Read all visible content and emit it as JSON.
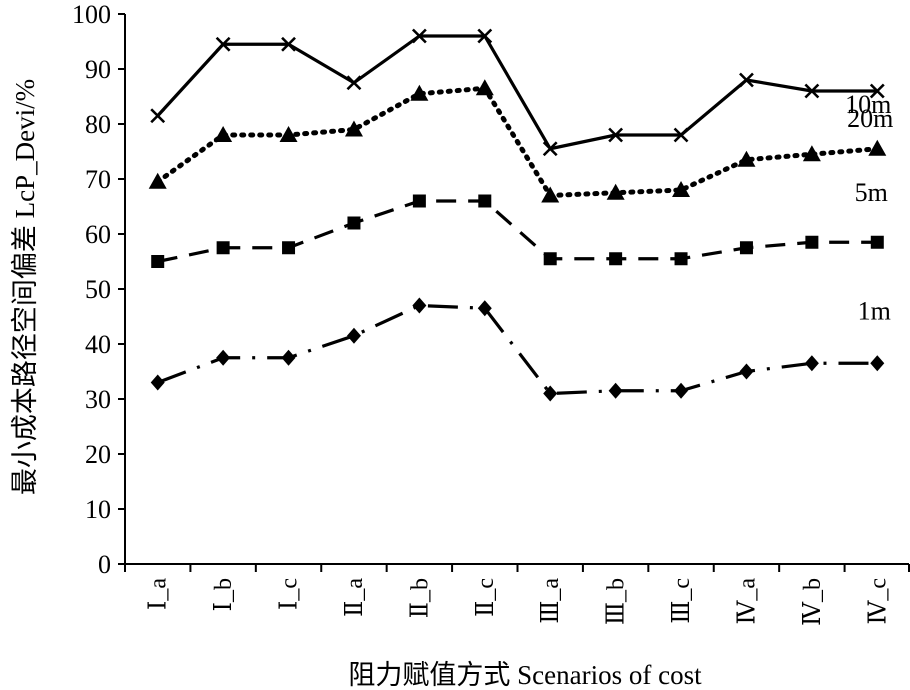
{
  "chart_data": {
    "type": "line",
    "xlabel": "阻力赋值方式 Scenarios of cost",
    "ylabel": "最小成本路径空间偏差 LcP_Devi/%",
    "ylim": [
      0,
      100
    ],
    "yticks": [
      0,
      10,
      20,
      30,
      40,
      50,
      60,
      70,
      80,
      90,
      100
    ],
    "grid": false,
    "legend": "none",
    "categories": [
      "Ⅰ_a",
      "Ⅰ_b",
      "Ⅰ_c",
      "Ⅱ_a",
      "Ⅱ_b",
      "Ⅱ_c",
      "Ⅲ_a",
      "Ⅲ_b",
      "Ⅲ_c",
      "Ⅳ_a",
      "Ⅳ_b",
      "Ⅳ_c"
    ],
    "series": [
      {
        "name": "20m",
        "marker": "x",
        "line": "solid",
        "color": "#000000",
        "values": [
          81.5,
          94.5,
          94.5,
          87.5,
          96.0,
          96.0,
          75.5,
          78.0,
          78.0,
          88.0,
          86.0,
          86.0
        ]
      },
      {
        "name": "10m",
        "marker": "triangle",
        "line": "dotted",
        "color": "#000000",
        "values": [
          69.5,
          78.0,
          78.0,
          79.0,
          85.5,
          86.5,
          67.0,
          67.5,
          68.0,
          73.5,
          74.5,
          75.5
        ]
      },
      {
        "name": "5m",
        "marker": "square",
        "line": "dashed",
        "color": "#000000",
        "values": [
          55.0,
          57.5,
          57.5,
          62.0,
          66.0,
          66.0,
          55.5,
          55.5,
          55.5,
          57.5,
          58.5,
          58.5
        ]
      },
      {
        "name": "1m",
        "marker": "diamond",
        "line": "dashdot",
        "color": "#000000",
        "values": [
          33.0,
          37.5,
          37.5,
          41.5,
          47.0,
          46.5,
          31.0,
          31.5,
          31.5,
          35.0,
          36.5,
          36.5
        ]
      }
    ]
  }
}
